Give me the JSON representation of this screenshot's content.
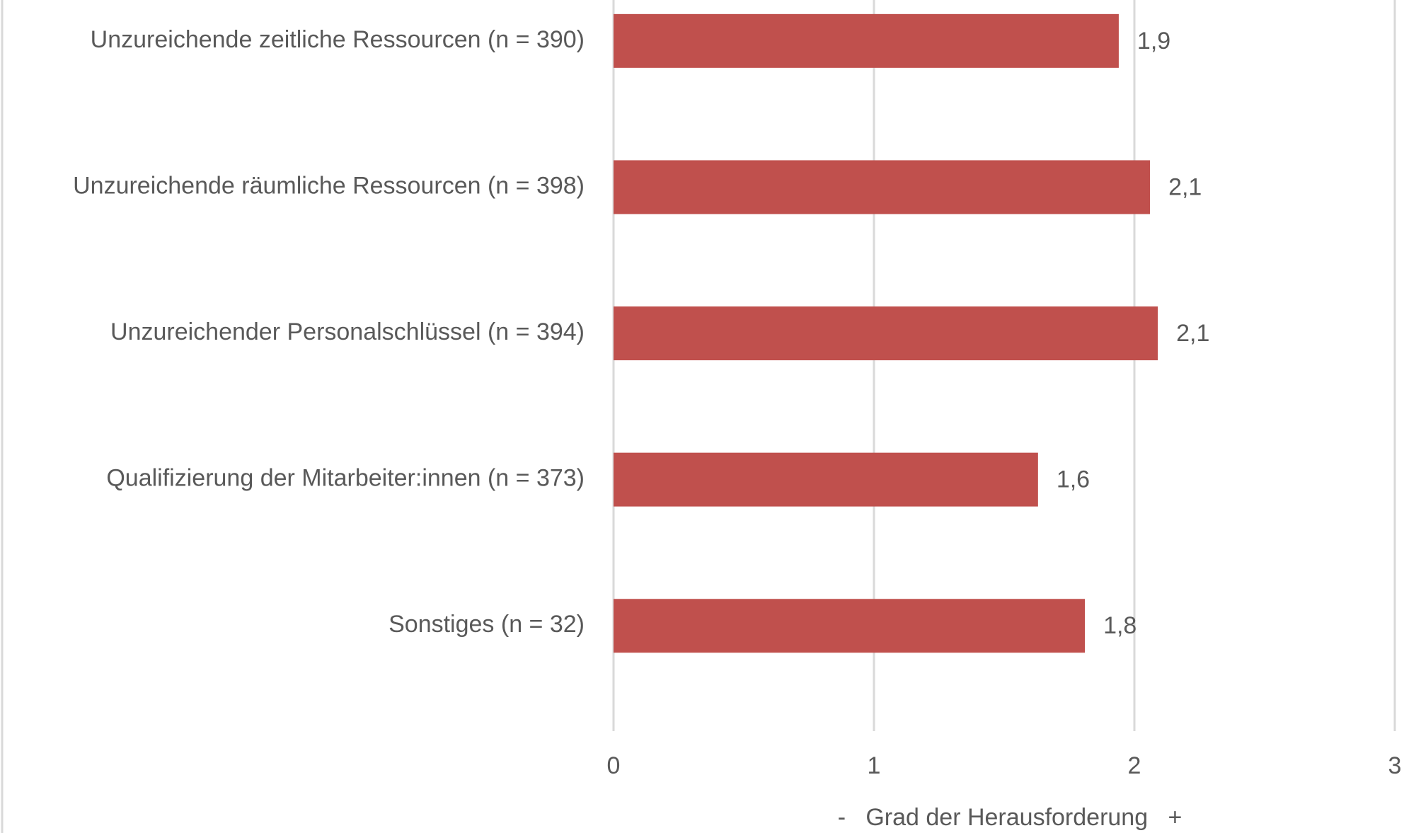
{
  "chart_data": {
    "type": "bar",
    "orientation": "horizontal",
    "categories": [
      "Unzureichende zeitliche Ressourcen (n = 390)",
      "Unzureichende räumliche Ressourcen (n = 398)",
      "Unzureichender Personalschlüssel (n = 394)",
      "Qualifizierung der Mitarbeiter:innen (n = 373)",
      "Sonstiges (n = 32)"
    ],
    "values": [
      1.94,
      2.06,
      2.09,
      1.63,
      1.81
    ],
    "value_labels": [
      "1,9",
      "2,1",
      "2,1",
      "1,6",
      "1,8"
    ],
    "color": "#c0504d",
    "xlim": [
      0,
      3
    ],
    "xticks": [
      0,
      1,
      2,
      3
    ],
    "grid": true,
    "xlabel": "-   Grad der Herausforderung   +"
  }
}
